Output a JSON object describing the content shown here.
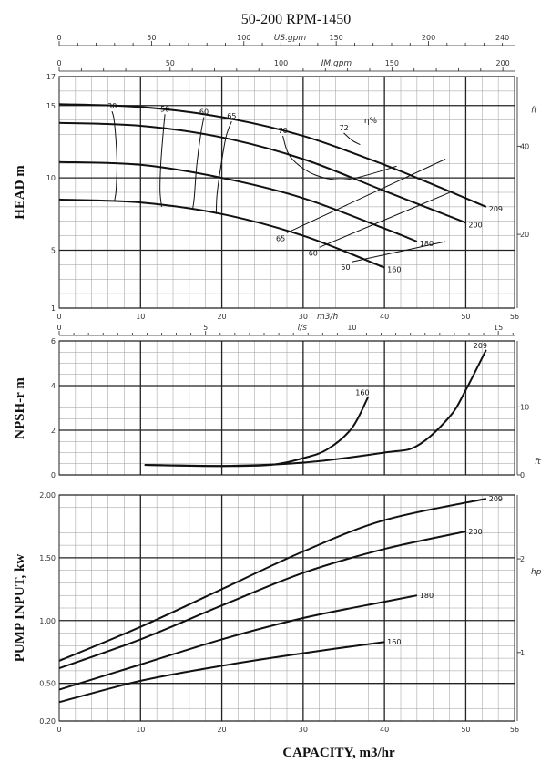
{
  "title": "50-200    RPM-1450",
  "x_label": "CAPACITY, m3/hr",
  "x_axis": {
    "unit": "m3/h",
    "min": 0,
    "max": 56,
    "ticks": [
      0,
      10,
      20,
      30,
      40,
      50,
      56
    ],
    "top_scales": [
      {
        "unit": "US.gpm",
        "ticks": [
          0,
          50,
          100,
          150,
          200,
          240
        ]
      },
      {
        "unit": "IM.gpm",
        "ticks": [
          0,
          50,
          100,
          150,
          200
        ]
      }
    ],
    "ls_scale": {
      "unit": "l/s",
      "ticks": [
        0,
        5,
        10,
        15
      ]
    }
  },
  "chart_data": [
    {
      "type": "line",
      "title": "HEAD m",
      "ylabel": "HEAD m",
      "xlabel": "m3/h",
      "ylim": [
        1,
        17
      ],
      "yticks": [
        1,
        5,
        10,
        15,
        17
      ],
      "right_axis": {
        "unit": "ft",
        "ticks": [
          20,
          40
        ]
      },
      "efficiency_label": "η%",
      "series": [
        {
          "name": "209",
          "x": [
            0,
            10,
            20,
            30,
            40,
            47,
            52.5
          ],
          "y": [
            15.1,
            14.9,
            14.2,
            12.9,
            10.9,
            9.3,
            8.0
          ]
        },
        {
          "name": "200",
          "x": [
            0,
            10,
            20,
            30,
            40,
            50
          ],
          "y": [
            13.8,
            13.6,
            12.8,
            11.3,
            9.1,
            6.9
          ]
        },
        {
          "name": "180",
          "x": [
            0,
            10,
            20,
            30,
            40,
            44
          ],
          "y": [
            11.1,
            10.9,
            10.0,
            8.6,
            6.5,
            5.6
          ]
        },
        {
          "name": "160",
          "x": [
            0,
            10,
            20,
            30,
            40
          ],
          "y": [
            8.5,
            8.3,
            7.5,
            6.0,
            3.8
          ]
        }
      ],
      "efficiency_curves": [
        {
          "name": "30",
          "x": [
            6.5,
            6.8,
            7.1,
            7.0,
            6.8
          ],
          "y": [
            14.6,
            13.8,
            11.2,
            9.2,
            8.4
          ]
        },
        {
          "name": "50",
          "x": [
            13.0,
            12.8,
            12.5,
            12.4,
            12.6
          ],
          "y": [
            14.4,
            13.2,
            11.0,
            9.1,
            8.0
          ]
        },
        {
          "name": "60",
          "x": [
            17.8,
            17.4,
            16.9,
            16.6,
            16.4
          ],
          "y": [
            14.2,
            13.0,
            10.8,
            8.6,
            7.8
          ]
        },
        {
          "name": "65",
          "x": [
            21.2,
            20.5,
            19.8,
            19.4,
            19.3
          ],
          "y": [
            13.9,
            12.8,
            10.5,
            8.8,
            7.5
          ]
        },
        {
          "name": "70",
          "x": [
            27.5,
            28.5,
            31.5,
            35.5,
            41.5
          ],
          "y": [
            12.9,
            11.4,
            10.2,
            9.9,
            10.8
          ]
        },
        {
          "name": "72",
          "x": [
            35,
            36,
            37
          ],
          "y": [
            13.1,
            12.6,
            12.3
          ]
        }
      ],
      "iso_efficiency_lines": [
        {
          "name": "65",
          "x": [
            28,
            47.5
          ],
          "y": [
            6.2,
            11.3
          ]
        },
        {
          "name": "60",
          "x": [
            32,
            48.5
          ],
          "y": [
            5.2,
            9.1
          ]
        },
        {
          "name": "50",
          "x": [
            36,
            47.5
          ],
          "y": [
            4.2,
            5.6
          ]
        }
      ]
    },
    {
      "type": "line",
      "title": "NPSH-r m",
      "ylabel": "NPSH-r m",
      "xlabel": "l/s",
      "ylim": [
        0,
        6
      ],
      "yticks": [
        0,
        2,
        4,
        6
      ],
      "right_axis": {
        "unit": "ft",
        "ticks": [
          0,
          10
        ]
      },
      "series": [
        {
          "name": "209",
          "x": [
            10.5,
            20,
            30,
            40,
            44,
            48,
            50,
            52.5
          ],
          "y": [
            0.45,
            0.4,
            0.55,
            1.0,
            1.3,
            2.6,
            3.8,
            5.6
          ]
        },
        {
          "name": "160",
          "x": [
            10.5,
            20,
            26,
            30,
            33,
            36,
            38
          ],
          "y": [
            0.45,
            0.4,
            0.45,
            0.75,
            1.15,
            2.1,
            3.5
          ]
        }
      ]
    },
    {
      "type": "line",
      "title": "PUMP INPUT, kw",
      "ylabel": "PUMP INPUT, kw",
      "xlabel": "m3/h",
      "ylim": [
        0.2,
        2.0
      ],
      "yticks": [
        0.2,
        0.5,
        1.0,
        1.5,
        2.0
      ],
      "ytick_labels": [
        "0.20",
        "0.50",
        "1.00",
        "1.50",
        "2.00"
      ],
      "right_axis": {
        "unit": "hp",
        "ticks": [
          1,
          2
        ]
      },
      "series": [
        {
          "name": "209",
          "x": [
            0,
            10,
            20,
            30,
            40,
            52.5
          ],
          "y": [
            0.68,
            0.95,
            1.25,
            1.55,
            1.8,
            1.97
          ]
        },
        {
          "name": "200",
          "x": [
            0,
            10,
            20,
            30,
            40,
            50
          ],
          "y": [
            0.62,
            0.85,
            1.12,
            1.38,
            1.57,
            1.71
          ]
        },
        {
          "name": "180",
          "x": [
            0,
            10,
            20,
            30,
            40,
            44
          ],
          "y": [
            0.45,
            0.65,
            0.85,
            1.02,
            1.15,
            1.2
          ]
        },
        {
          "name": "160",
          "x": [
            0,
            10,
            20,
            30,
            40
          ],
          "y": [
            0.35,
            0.52,
            0.64,
            0.74,
            0.83
          ]
        }
      ]
    }
  ]
}
